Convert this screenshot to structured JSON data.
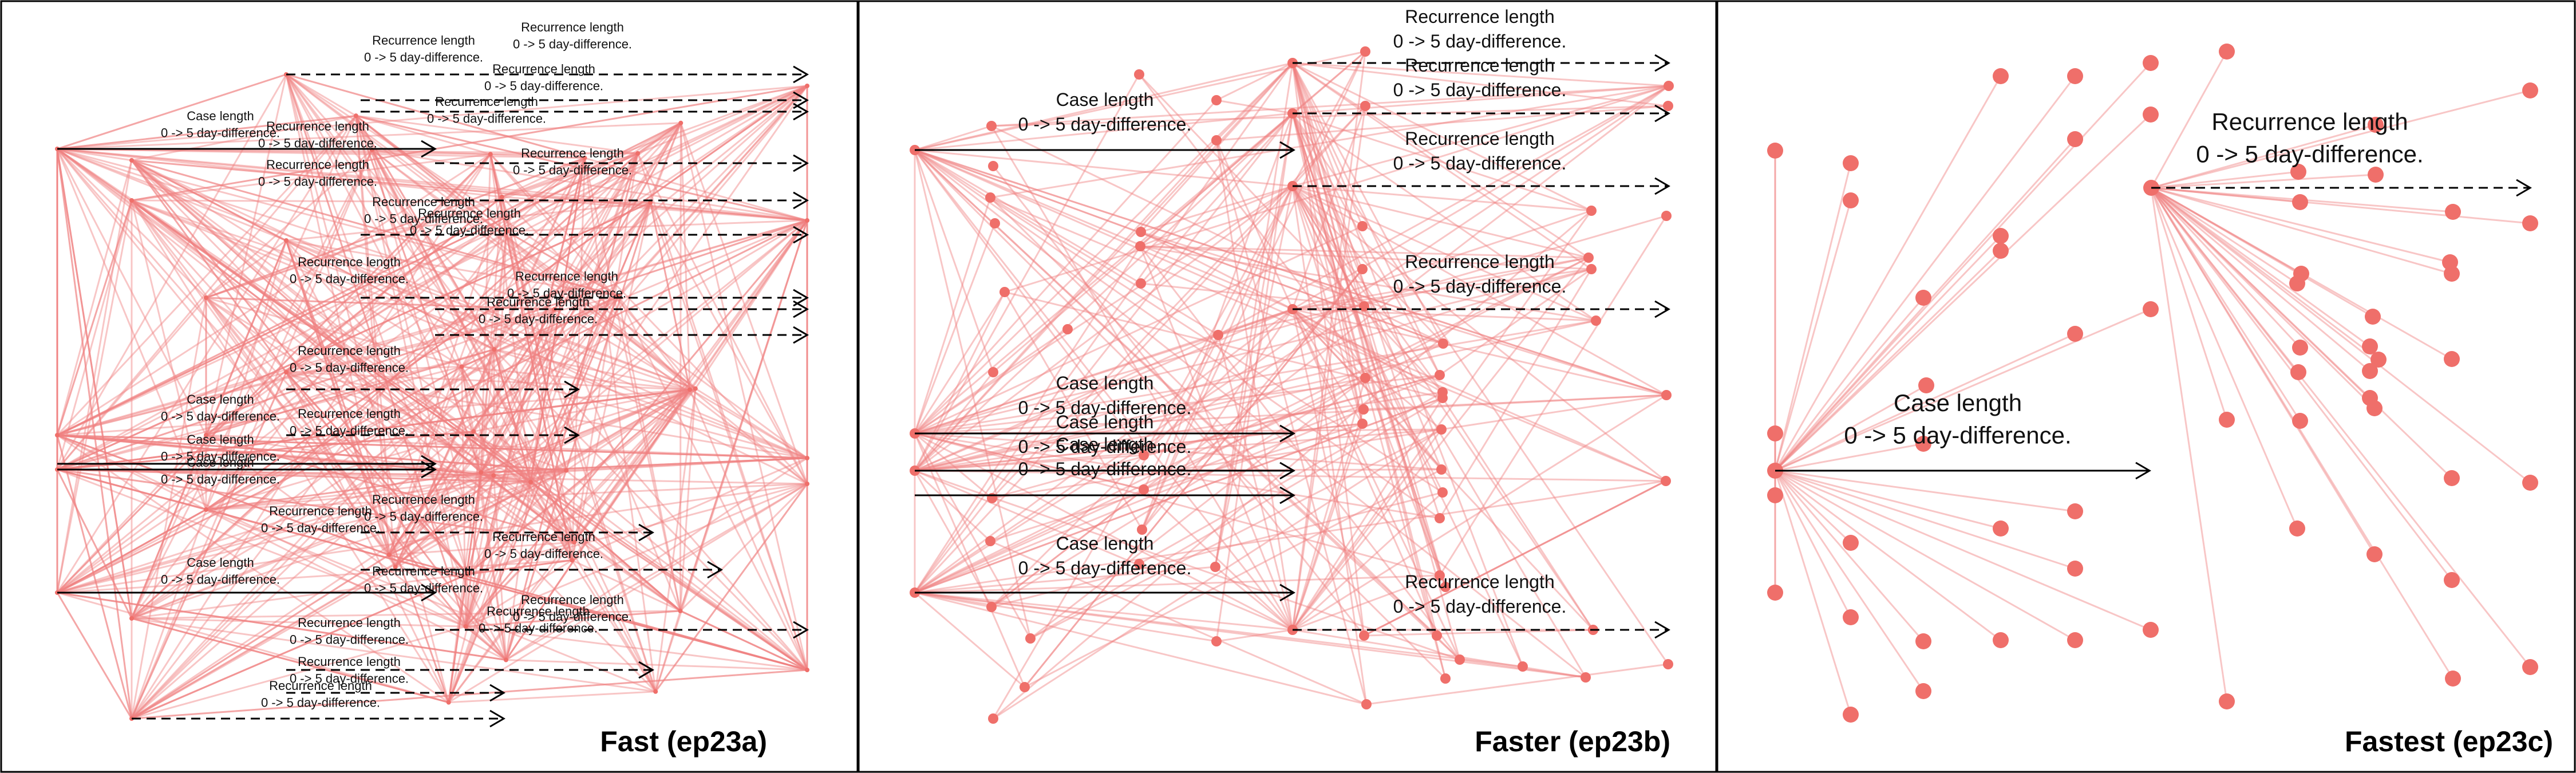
{
  "panels": [
    {
      "label": "Fast (ep23a)",
      "annotations": {
        "case": "Case length",
        "recurrence": "Recurrence length",
        "difference": "0 -> 5 day-difference."
      }
    },
    {
      "label": "Faster (ep23b)",
      "annotations": {
        "case": "Case length",
        "recurrence": "Recurrence length",
        "difference": "0 -> 5 day-difference."
      }
    },
    {
      "label": "Fastest (ep23c)",
      "annotations": {
        "case": "Case length",
        "recurrence": "Recurrence length",
        "difference": "0 -> 5 day-difference."
      }
    }
  ],
  "colors": {
    "edge": "#f08080",
    "node": "#ef6f6a",
    "arrow": "#000000",
    "frame": "#000000"
  }
}
